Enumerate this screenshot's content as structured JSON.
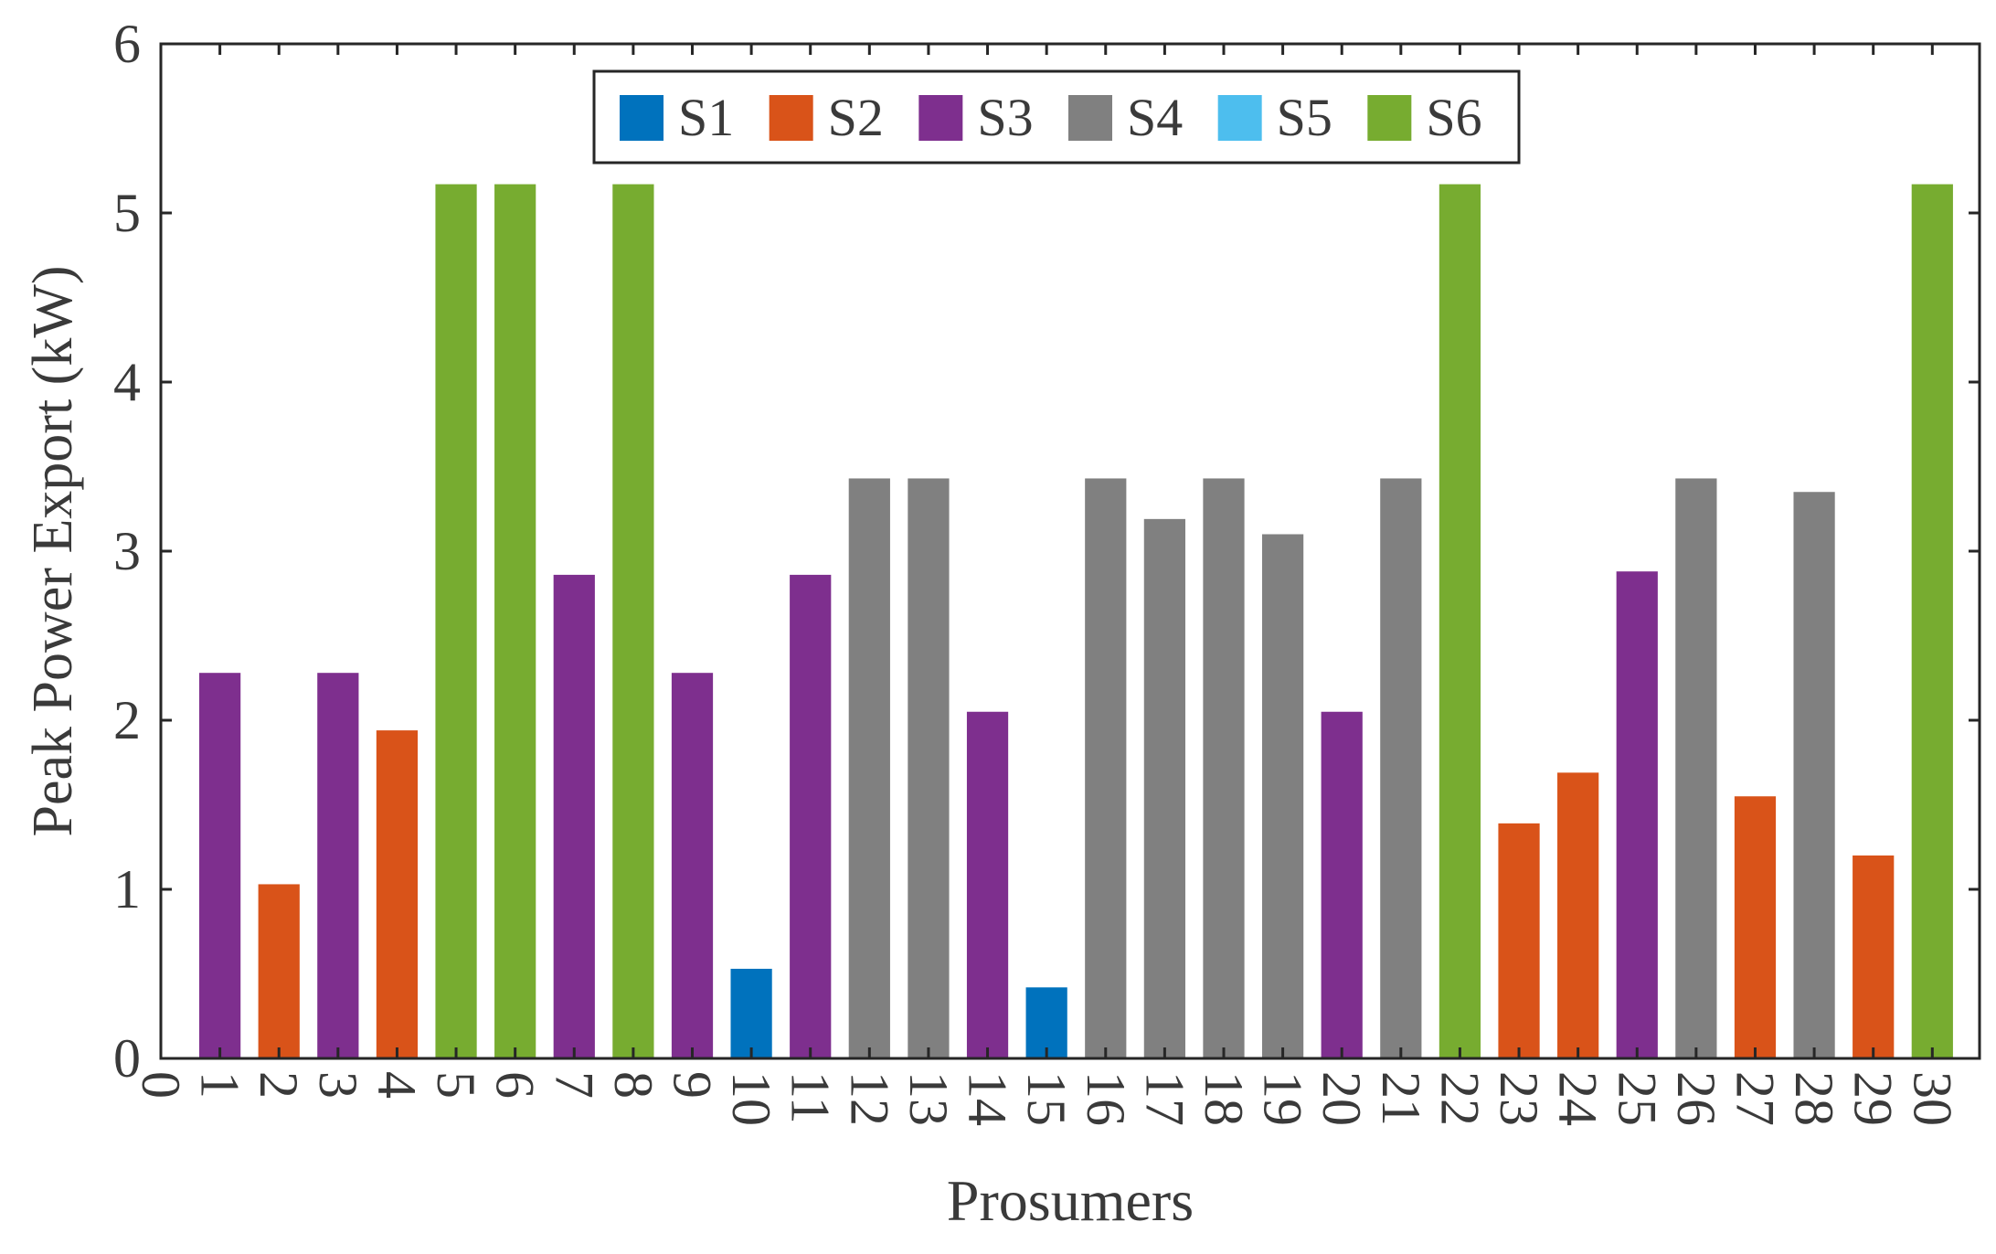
{
  "chart_data": {
    "type": "bar",
    "title": "",
    "xlabel": "Prosumers",
    "ylabel": "Peak Power Export (kW)",
    "xlim": [
      0,
      30
    ],
    "ylim": [
      0,
      6
    ],
    "x_ticks": [
      "0",
      "1",
      "2",
      "3",
      "4",
      "5",
      "6",
      "7",
      "8",
      "9",
      "10",
      "11",
      "12",
      "13",
      "14",
      "15",
      "16",
      "17",
      "18",
      "19",
      "20",
      "21",
      "22",
      "23",
      "24",
      "25",
      "26",
      "27",
      "28",
      "29",
      "30"
    ],
    "y_ticks": [
      "0",
      "1",
      "2",
      "3",
      "4",
      "5",
      "6"
    ],
    "grid": false,
    "legend_position": "top-center",
    "series": [
      {
        "name": "S1",
        "color": "#0072BD"
      },
      {
        "name": "S2",
        "color": "#D95319"
      },
      {
        "name": "S3",
        "color": "#7E2F8E"
      },
      {
        "name": "S4",
        "color": "#808080"
      },
      {
        "name": "S5",
        "color": "#4DBEEE"
      },
      {
        "name": "S6",
        "color": "#77AC30"
      }
    ],
    "bars": [
      {
        "x": 1,
        "value": 2.28,
        "series": "S3"
      },
      {
        "x": 2,
        "value": 1.03,
        "series": "S2"
      },
      {
        "x": 3,
        "value": 2.28,
        "series": "S3"
      },
      {
        "x": 4,
        "value": 1.94,
        "series": "S2"
      },
      {
        "x": 5,
        "value": 5.17,
        "series": "S6"
      },
      {
        "x": 6,
        "value": 5.17,
        "series": "S6"
      },
      {
        "x": 7,
        "value": 2.86,
        "series": "S3"
      },
      {
        "x": 8,
        "value": 5.17,
        "series": "S6"
      },
      {
        "x": 9,
        "value": 2.28,
        "series": "S3"
      },
      {
        "x": 10,
        "value": 0.53,
        "series": "S1"
      },
      {
        "x": 11,
        "value": 2.86,
        "series": "S3"
      },
      {
        "x": 12,
        "value": 3.43,
        "series": "S4"
      },
      {
        "x": 13,
        "value": 3.43,
        "series": "S4"
      },
      {
        "x": 14,
        "value": 2.05,
        "series": "S3"
      },
      {
        "x": 15,
        "value": 0.42,
        "series": "S1"
      },
      {
        "x": 16,
        "value": 3.43,
        "series": "S4"
      },
      {
        "x": 17,
        "value": 3.19,
        "series": "S4"
      },
      {
        "x": 18,
        "value": 3.43,
        "series": "S4"
      },
      {
        "x": 19,
        "value": 3.1,
        "series": "S4"
      },
      {
        "x": 20,
        "value": 2.05,
        "series": "S3"
      },
      {
        "x": 21,
        "value": 3.43,
        "series": "S4"
      },
      {
        "x": 22,
        "value": 5.17,
        "series": "S6"
      },
      {
        "x": 23,
        "value": 1.39,
        "series": "S2"
      },
      {
        "x": 24,
        "value": 1.69,
        "series": "S2"
      },
      {
        "x": 25,
        "value": 2.88,
        "series": "S3"
      },
      {
        "x": 26,
        "value": 3.43,
        "series": "S4"
      },
      {
        "x": 27,
        "value": 1.55,
        "series": "S2"
      },
      {
        "x": 28,
        "value": 3.35,
        "series": "S4"
      },
      {
        "x": 29,
        "value": 1.2,
        "series": "S2"
      },
      {
        "x": 30,
        "value": 5.17,
        "series": "S6"
      }
    ]
  }
}
